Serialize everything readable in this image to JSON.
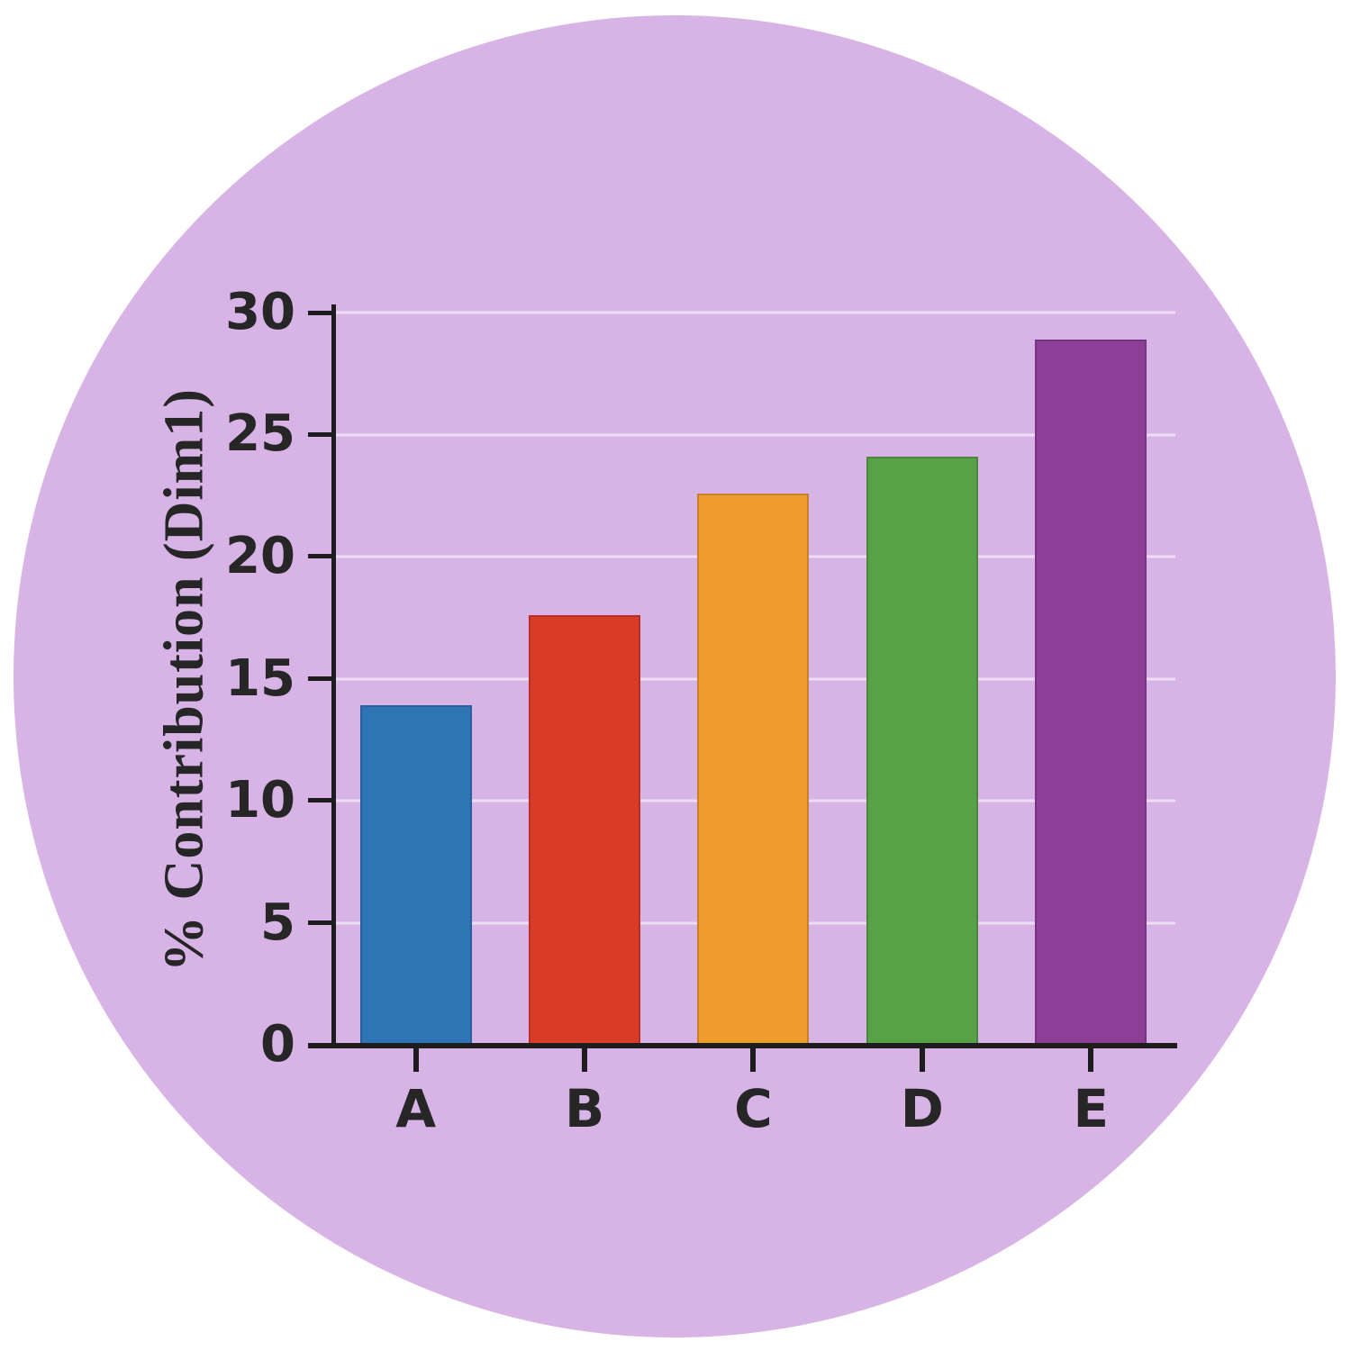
{
  "chart_data": {
    "type": "bar",
    "title": "",
    "categories": [
      "A",
      "B",
      "C",
      "D",
      "E"
    ],
    "values": [
      13.9,
      17.6,
      22.6,
      24.1,
      28.9
    ],
    "xlabel": "",
    "ylabel": "% Contribution (Dim1)",
    "yticks": [
      0,
      5,
      10,
      15,
      20,
      25,
      30
    ],
    "ylim": [
      0,
      30
    ],
    "grid": "horizontal-faint",
    "legend_position": "none",
    "colors": {
      "bars": [
        "#2e75b6",
        "#da3b27",
        "#f09b2d",
        "#57a246",
        "#8d3f97"
      ],
      "background_circle": "#d8b3e6",
      "page_background": "#ffffff",
      "axis": "#1d1d1d",
      "text": "#262626",
      "gridline": "rgba(255,255,255,0.55)"
    }
  }
}
